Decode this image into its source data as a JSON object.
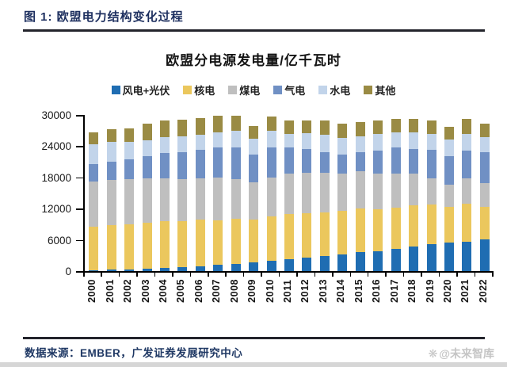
{
  "header": {
    "title": "图 1: 欧盟电力结构变化过程"
  },
  "footer": {
    "source_label": "数据来源：EMBER，广发证券发展研究中心",
    "watermark_icon": "❋",
    "watermark": "@未来智库"
  },
  "chart_data": {
    "type": "bar",
    "stacked": true,
    "title": "欧盟分电源发电量/亿千瓦时",
    "unit": "亿千瓦时",
    "xlabel": "",
    "ylabel": "",
    "ylim": [
      0,
      30000
    ],
    "yticks": [
      0,
      6000,
      12000,
      18000,
      24000,
      30000
    ],
    "grid": false,
    "legend_position": "top",
    "categories": [
      "2000",
      "2001",
      "2002",
      "2003",
      "2004",
      "2005",
      "2006",
      "2007",
      "2008",
      "2009",
      "2010",
      "2011",
      "2012",
      "2013",
      "2014",
      "2015",
      "2016",
      "2017",
      "2018",
      "2019",
      "2020",
      "2021",
      "2022"
    ],
    "series": [
      {
        "name": "风电+光伏",
        "color": "#1f6db2",
        "values": [
          150,
          250,
          350,
          450,
          600,
          750,
          900,
          1150,
          1400,
          1700,
          2000,
          2300,
          2550,
          2850,
          3150,
          3650,
          3800,
          4300,
          4700,
          5200,
          5500,
          5700,
          6100
        ]
      },
      {
        "name": "核电",
        "color": "#ebc75d",
        "values": [
          8450,
          8550,
          8650,
          8800,
          8950,
          8900,
          8950,
          8650,
          8600,
          8250,
          8500,
          8600,
          8500,
          8450,
          8450,
          8350,
          8100,
          7900,
          7900,
          7650,
          6850,
          7300,
          6200
        ]
      },
      {
        "name": "煤电",
        "color": "#bfbfbf",
        "values": [
          8600,
          8700,
          8650,
          8500,
          8300,
          8000,
          7900,
          8100,
          7700,
          7100,
          7400,
          7800,
          7900,
          7600,
          7200,
          7200,
          6900,
          6600,
          6100,
          4900,
          4300,
          4800,
          4600
        ]
      },
      {
        "name": "气电",
        "color": "#7090c4",
        "values": [
          3350,
          3500,
          3900,
          4300,
          4800,
          5200,
          5500,
          5800,
          6100,
          5300,
          5800,
          5100,
          4500,
          4000,
          3600,
          3700,
          4400,
          5000,
          4800,
          5600,
          5400,
          5300,
          5900
        ]
      },
      {
        "name": "水电",
        "color": "#c2d4ea",
        "values": [
          3750,
          3800,
          3300,
          3150,
          3150,
          3050,
          3000,
          3000,
          3150,
          3100,
          3250,
          2550,
          3000,
          3300,
          3250,
          3000,
          3100,
          2800,
          3100,
          3000,
          3200,
          3300,
          2900
        ]
      },
      {
        "name": "其他",
        "color": "#9a8b44",
        "values": [
          2300,
          2450,
          2600,
          3100,
          3200,
          3250,
          3200,
          3150,
          2950,
          2450,
          2750,
          2550,
          2500,
          2700,
          2700,
          2800,
          2700,
          2650,
          2700,
          2550,
          2550,
          2900,
          2700
        ]
      }
    ]
  }
}
